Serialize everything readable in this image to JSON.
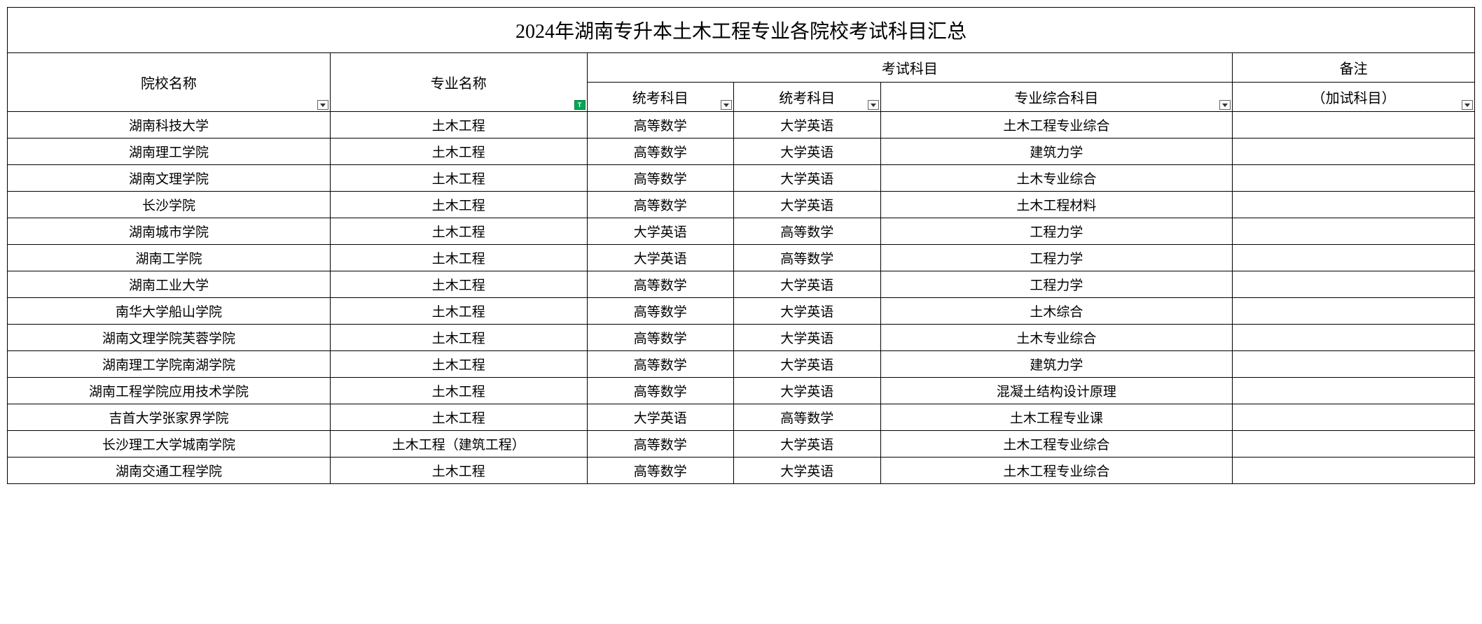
{
  "title": "2024年湖南专升本土木工程专业各院校考试科目汇总",
  "headers": {
    "school": "院校名称",
    "major": "专业名称",
    "exam_group": "考试科目",
    "subject1": "统考科目",
    "subject2": "统考科目",
    "subject3": "专业综合科目",
    "note_top": "备注",
    "note_bottom": "（加试科目）"
  },
  "table_style": {
    "border_color": "#000000",
    "background_color": "#ffffff",
    "title_fontsize": 28,
    "header_fontsize": 20,
    "data_fontsize": 19,
    "filter_dropdown_color": "#fafafa",
    "filter_arrow_color": "#333333",
    "filter_green_color": "#00a651",
    "column_widths_percent": [
      22,
      17.5,
      10,
      10,
      24,
      16.5
    ]
  },
  "filter_green_label": "T",
  "rows": [
    {
      "school": "湖南科技大学",
      "major": "土木工程",
      "s1": "高等数学",
      "s2": "大学英语",
      "s3": "土木工程专业综合",
      "note": ""
    },
    {
      "school": "湖南理工学院",
      "major": "土木工程",
      "s1": "高等数学",
      "s2": "大学英语",
      "s3": "建筑力学",
      "note": ""
    },
    {
      "school": "湖南文理学院",
      "major": "土木工程",
      "s1": "高等数学",
      "s2": "大学英语",
      "s3": "土木专业综合",
      "note": ""
    },
    {
      "school": "长沙学院",
      "major": "土木工程",
      "s1": "高等数学",
      "s2": "大学英语",
      "s3": "土木工程材料",
      "note": ""
    },
    {
      "school": "湖南城市学院",
      "major": "土木工程",
      "s1": "大学英语",
      "s2": "高等数学",
      "s3": "工程力学",
      "note": ""
    },
    {
      "school": "湖南工学院",
      "major": "土木工程",
      "s1": "大学英语",
      "s2": "高等数学",
      "s3": "工程力学",
      "note": ""
    },
    {
      "school": "湖南工业大学",
      "major": "土木工程",
      "s1": "高等数学",
      "s2": "大学英语",
      "s3": "工程力学",
      "note": ""
    },
    {
      "school": "南华大学船山学院",
      "major": "土木工程",
      "s1": "高等数学",
      "s2": "大学英语",
      "s3": "土木综合",
      "note": ""
    },
    {
      "school": "湖南文理学院芙蓉学院",
      "major": "土木工程",
      "s1": "高等数学",
      "s2": "大学英语",
      "s3": "土木专业综合",
      "note": ""
    },
    {
      "school": "湖南理工学院南湖学院",
      "major": "土木工程",
      "s1": "高等数学",
      "s2": "大学英语",
      "s3": "建筑力学",
      "note": ""
    },
    {
      "school": "湖南工程学院应用技术学院",
      "major": "土木工程",
      "s1": "高等数学",
      "s2": "大学英语",
      "s3": "混凝土结构设计原理",
      "note": ""
    },
    {
      "school": "吉首大学张家界学院",
      "major": "土木工程",
      "s1": "大学英语",
      "s2": "高等数学",
      "s3": "土木工程专业课",
      "note": ""
    },
    {
      "school": "长沙理工大学城南学院",
      "major": "土木工程（建筑工程）",
      "s1": "高等数学",
      "s2": "大学英语",
      "s3": "土木工程专业综合",
      "note": ""
    },
    {
      "school": "湖南交通工程学院",
      "major": "土木工程",
      "s1": "高等数学",
      "s2": "大学英语",
      "s3": "土木工程专业综合",
      "note": ""
    }
  ]
}
